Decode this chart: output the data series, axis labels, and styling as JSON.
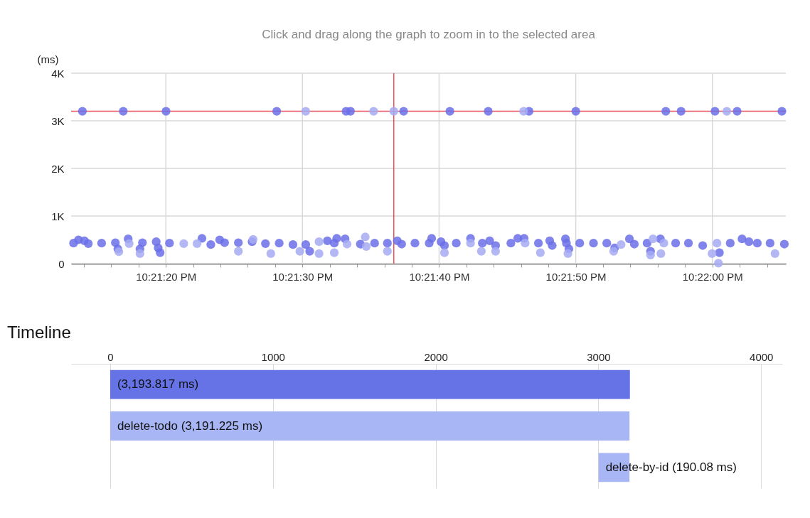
{
  "chart_data": [
    {
      "type": "scatter",
      "title": "Click and drag along the graph to zoom in to the selected area",
      "ylabel": "(ms)",
      "marker": "circle",
      "grid": true,
      "xlim": [
        22.35363,
        22.36816
      ],
      "xticks": [
        {
          "value": 22.353889,
          "label": null
        },
        {
          "value": 22.354444,
          "label": null
        },
        {
          "value": 22.355,
          "label": null
        },
        {
          "value": 22.355556,
          "label": "10:21:20 PM"
        },
        {
          "value": 22.356111,
          "label": null
        },
        {
          "value": 22.356667,
          "label": null
        },
        {
          "value": 22.357222,
          "label": null
        },
        {
          "value": 22.357778,
          "label": null
        },
        {
          "value": 22.358333,
          "label": "10:21:30 PM"
        },
        {
          "value": 22.358889,
          "label": null
        },
        {
          "value": 22.359444,
          "label": null
        },
        {
          "value": 22.36,
          "label": null
        },
        {
          "value": 22.360556,
          "label": null
        },
        {
          "value": 22.361111,
          "label": "10:21:40 PM"
        },
        {
          "value": 22.361667,
          "label": null
        },
        {
          "value": 22.362222,
          "label": null
        },
        {
          "value": 22.362778,
          "label": null
        },
        {
          "value": 22.363333,
          "label": null
        },
        {
          "value": 22.363889,
          "label": "10:21:50 PM"
        },
        {
          "value": 22.364444,
          "label": null
        },
        {
          "value": 22.365,
          "label": null
        },
        {
          "value": 22.365556,
          "label": null
        },
        {
          "value": 22.366111,
          "label": null
        },
        {
          "value": 22.366667,
          "label": "10:22:00 PM"
        },
        {
          "value": 22.367222,
          "label": null
        },
        {
          "value": 22.367778,
          "label": null
        }
      ],
      "ylim": [
        0,
        4000
      ],
      "yticks": [
        0,
        {
          "value": 1000,
          "label": "1K"
        },
        {
          "value": 2000,
          "label": "2K"
        },
        {
          "value": 3000,
          "label": "3K"
        },
        {
          "value": 4000,
          "label": "4K"
        }
      ],
      "ref_lines": [
        {
          "axis": "x",
          "value": 22.36019,
          "color": "#e8505b"
        },
        {
          "axis": "y",
          "value": 3200,
          "color": "#e8505b"
        }
      ],
      "series": [
        {
          "color": "#6b6ee8",
          "x": [
            22.35386,
            22.35469,
            22.35556,
            22.35781,
            22.35922,
            22.35931,
            22.36039,
            22.36133,
            22.36211,
            22.36294,
            22.36389,
            22.36572,
            22.36603,
            22.36672,
            22.36717,
            22.36808,
            22.35368,
            22.35378,
            22.3539,
            22.35398,
            22.35425,
            22.35453,
            22.35458,
            22.35479,
            22.35508,
            22.35503,
            22.35536,
            22.3554,
            22.35544,
            22.35563,
            22.35629,
            22.35647,
            22.35665,
            22.35675,
            22.35703,
            22.35731,
            22.35758,
            22.35786,
            22.35814,
            22.3584,
            22.35848,
            22.35884,
            22.35898,
            22.35903,
            22.3592,
            22.35951,
            22.3598,
            22.36006,
            22.36026,
            22.36035,
            22.36062,
            22.36091,
            22.36096,
            22.36115,
            22.36122,
            22.36146,
            22.36175,
            22.36199,
            22.36214,
            22.36226,
            22.36257,
            22.36271,
            22.36284,
            22.36313,
            22.36336,
            22.36341,
            22.36368,
            22.3637,
            22.36375,
            22.36397,
            22.36425,
            22.36452,
            22.36468,
            22.36498,
            22.36508,
            22.36534,
            22.36541,
            22.36561,
            22.36592,
            22.36618,
            22.36647,
            22.36681,
            22.36703,
            22.36727,
            22.36741,
            22.36758,
            22.36784,
            22.36813
          ],
          "values": [
            3200,
            3200,
            3200,
            3200,
            3200,
            3200,
            3200,
            3200,
            3200,
            3200,
            3200,
            3200,
            3200,
            3200,
            3200,
            3200,
            430,
            500,
            480,
            420,
            430,
            440,
            310,
            520,
            440,
            310,
            460,
            330,
            230,
            430,
            530,
            400,
            500,
            440,
            440,
            460,
            420,
            430,
            400,
            400,
            260,
            480,
            430,
            530,
            520,
            410,
            430,
            430,
            480,
            410,
            430,
            430,
            530,
            460,
            380,
            430,
            530,
            430,
            480,
            380,
            430,
            530,
            530,
            430,
            480,
            380,
            520,
            430,
            310,
            430,
            430,
            430,
            330,
            520,
            410,
            430,
            260,
            520,
            430,
            430,
            380,
            230,
            430,
            520,
            460,
            430,
            430,
            410
          ]
        },
        {
          "color": "#a6abf3",
          "x": [
            22.3584,
            22.35978,
            22.36019,
            22.36283,
            22.36696,
            22.3546,
            22.35481,
            22.35503,
            22.35592,
            22.35619,
            22.35703,
            22.35733,
            22.35769,
            22.35828,
            22.35867,
            22.35867,
            22.35898,
            22.35924,
            22.35961,
            22.35963,
            22.36006,
            22.36122,
            22.36175,
            22.36197,
            22.36226,
            22.36286,
            22.36317,
            22.36373,
            22.36466,
            22.36481,
            22.36541,
            22.36546,
            22.36568,
            22.36562,
            22.36666,
            22.36676,
            22.36679,
            22.36794
          ],
          "values": [
            3200,
            3200,
            3200,
            3200,
            3200,
            250,
            420,
            210,
            420,
            420,
            260,
            510,
            210,
            260,
            460,
            210,
            230,
            410,
            560,
            360,
            260,
            230,
            430,
            260,
            260,
            430,
            230,
            210,
            260,
            400,
            180,
            520,
            430,
            210,
            210,
            430,
            10,
            210
          ]
        }
      ]
    },
    {
      "type": "bar",
      "title": "Timeline",
      "orientation": "horizontal",
      "grid": "x",
      "categories": [
        "(3,193.817 ms)",
        "delete-todo (3,191.225 ms)",
        "delete-by-id (190.08 ms)"
      ],
      "values": [
        3193.817,
        3191.225,
        190.08
      ],
      "base": [
        0,
        0,
        3001
      ],
      "colors": [
        "#6573e6",
        "#a8b6f6",
        "#a8b6f6"
      ],
      "xlim": [
        -240,
        4130
      ],
      "xticks": [
        0,
        1000,
        2000,
        3000,
        4000
      ]
    }
  ]
}
